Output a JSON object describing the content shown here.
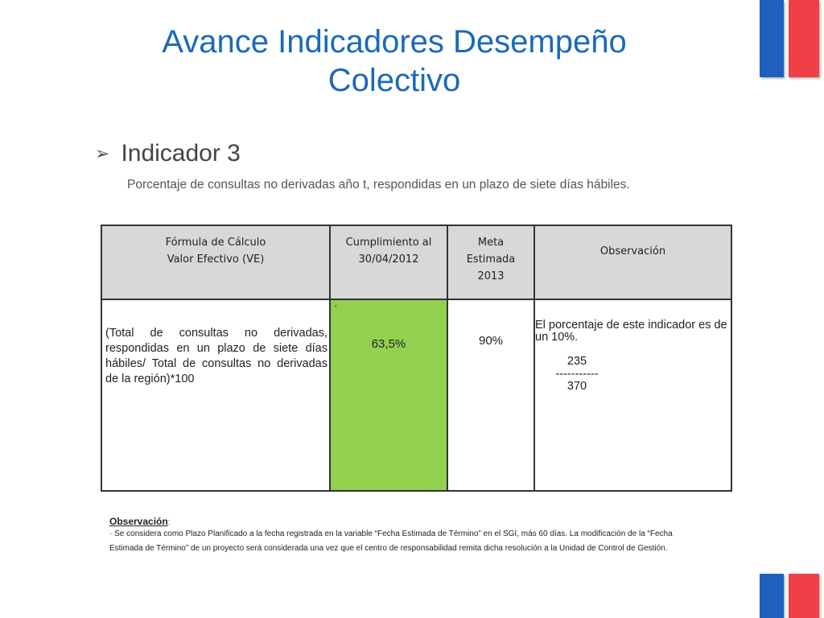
{
  "slide": {
    "title_line1": "Avance Indicadores Desempeño",
    "title_line2": "Colectivo",
    "bullet_heading": "Indicador 3",
    "description": "Porcentaje de consultas no derivadas año t, respondidas en un plazo de siete días hábiles."
  },
  "table": {
    "headers": {
      "formula_line1": "Fórmula de Cálculo",
      "formula_line2": "Valor Efectivo  (VE)",
      "cumplimiento_line1": "Cumplimiento al",
      "cumplimiento_line2": "30/04/2012",
      "meta_line1": "Meta",
      "meta_line2": "Estimada",
      "meta_line3": "2013",
      "observacion": "Observación"
    },
    "row": {
      "formula": "(Total de consultas no derivadas, respondidas en un plazo de siete días hábiles/ Total de consultas no derivadas de la región)*100",
      "cumplimiento_marker": "·",
      "cumplimiento_value": "63,5%",
      "meta_value": "90%",
      "observacion_text": "El porcentaje de este indicador es de un 10%.",
      "numerator": "235",
      "fraction_line": "-----------",
      "denominator": "370"
    },
    "colors": {
      "header_bg": "#d8d8d8",
      "cumplimiento_bg": "#92d050"
    }
  },
  "footnote": {
    "label": "Observación",
    "colon": ":",
    "marker": "·",
    "line1": "Se considera como Plazo Planificado a la fecha registrada en la variable “Fecha Estimada de Término” en el SGI, más 60 días. La modificación de la “Fecha",
    "line2": "Estimada de Término” de un proyecto será considerada una vez que el centro de responsabilidad remita dicha resolución a la Unidad de Control de Gestión."
  },
  "brand_colors": {
    "blue": "#1f5fbf",
    "red": "#ef3f47",
    "title": "#1a6ab8"
  }
}
